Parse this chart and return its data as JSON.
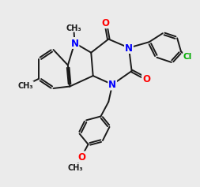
{
  "bg_color": "#ebebeb",
  "bond_color": "#1a1a1a",
  "n_color": "#0000ff",
  "o_color": "#ff0000",
  "cl_color": "#00aa00",
  "lw": 1.4,
  "dbo": 0.055,
  "fs": 8.5,
  "fs_small": 7.0,
  "xlim": [
    0.5,
    10.0
  ],
  "ylim": [
    0.3,
    9.2
  ]
}
